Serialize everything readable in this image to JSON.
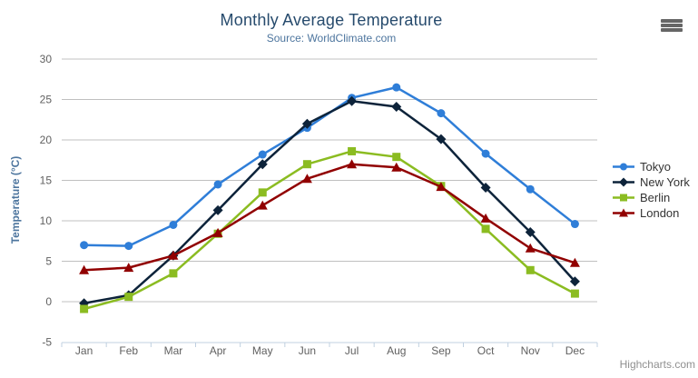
{
  "header": {
    "title": "Monthly Average Temperature",
    "subtitle": "Source: WorldClimate.com"
  },
  "credits": "Highcharts.com",
  "colors": {
    "title": "#274b6d",
    "subtitle": "#4d759e",
    "y_axis_title": "#4d759e",
    "grid_line": "#c0c0c0",
    "axis_line": "#c0d0e0",
    "tick_label": "#606060",
    "legend_text": "#333333",
    "credits": "#909090",
    "menu_icon": "#666666"
  },
  "chart_data": {
    "type": "line",
    "title": "Monthly Average Temperature",
    "subtitle": "Source: WorldClimate.com",
    "xlabel": "",
    "ylabel": "Temperature (°C)",
    "ylim": [
      -5,
      30
    ],
    "yticks": [
      -5,
      0,
      5,
      10,
      15,
      20,
      25,
      30
    ],
    "grid": true,
    "legend_position": "right",
    "categories": [
      "Jan",
      "Feb",
      "Mar",
      "Apr",
      "May",
      "Jun",
      "Jul",
      "Aug",
      "Sep",
      "Oct",
      "Nov",
      "Dec"
    ],
    "series": [
      {
        "name": "Tokyo",
        "color": "#2f7ed8",
        "marker": "circle",
        "values": [
          7.0,
          6.9,
          9.5,
          14.5,
          18.2,
          21.5,
          25.2,
          26.5,
          23.3,
          18.3,
          13.9,
          9.6
        ]
      },
      {
        "name": "New York",
        "color": "#0d233a",
        "marker": "diamond",
        "values": [
          -0.2,
          0.8,
          5.7,
          11.3,
          17.0,
          22.0,
          24.8,
          24.1,
          20.1,
          14.1,
          8.6,
          2.5
        ]
      },
      {
        "name": "Berlin",
        "color": "#8bbc21",
        "marker": "square",
        "values": [
          -0.9,
          0.6,
          3.5,
          8.4,
          13.5,
          17.0,
          18.6,
          17.9,
          14.3,
          9.0,
          3.9,
          1.0
        ]
      },
      {
        "name": "London",
        "color": "#910000",
        "marker": "triangle",
        "values": [
          3.9,
          4.2,
          5.7,
          8.5,
          11.9,
          15.2,
          17.0,
          16.6,
          14.2,
          10.3,
          6.6,
          4.8
        ]
      }
    ]
  }
}
